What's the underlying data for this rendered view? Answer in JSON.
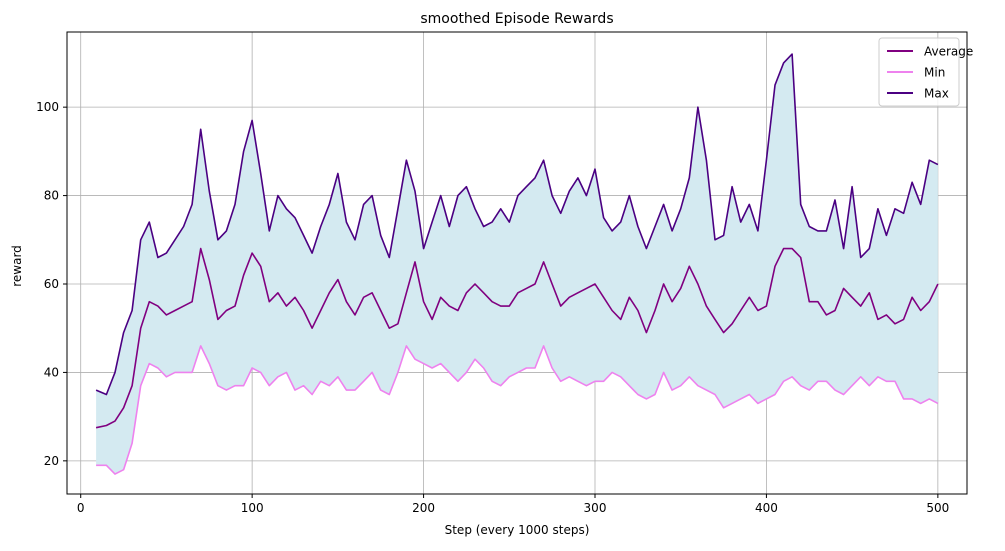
{
  "chart_data": {
    "type": "line",
    "title": "smoothed Episode Rewards",
    "xlabel": "Step (every 1000 steps)",
    "ylabel": "reward",
    "xlim": [
      -8,
      517
    ],
    "ylim": [
      12.5,
      117
    ],
    "x_ticks": [
      0,
      100,
      200,
      300,
      400,
      500
    ],
    "y_ticks": [
      20,
      40,
      60,
      80,
      100
    ],
    "grid": true,
    "legend_position": "top-right",
    "fill_between": {
      "lower": "Min",
      "upper": "Max",
      "color": "#d4eaf1"
    },
    "x": [
      9,
      15,
      20,
      25,
      30,
      35,
      40,
      45,
      50,
      55,
      60,
      65,
      70,
      75,
      80,
      85,
      90,
      95,
      100,
      105,
      110,
      115,
      120,
      125,
      130,
      135,
      140,
      145,
      150,
      155,
      160,
      165,
      170,
      175,
      180,
      185,
      190,
      195,
      200,
      205,
      210,
      215,
      220,
      225,
      230,
      235,
      240,
      245,
      250,
      255,
      260,
      265,
      270,
      275,
      280,
      285,
      290,
      295,
      300,
      305,
      310,
      315,
      320,
      325,
      330,
      335,
      340,
      345,
      350,
      355,
      360,
      365,
      370,
      375,
      380,
      385,
      390,
      395,
      400,
      405,
      410,
      415,
      420,
      425,
      430,
      435,
      440,
      445,
      450,
      455,
      460,
      465,
      470,
      475,
      480,
      485,
      490,
      495,
      500
    ],
    "series": [
      {
        "name": "Average",
        "color": "#800080",
        "values": [
          27.5,
          28,
          29,
          32,
          37,
          50,
          56,
          55,
          53,
          54,
          55,
          56,
          68,
          61,
          52,
          54,
          55,
          62,
          67,
          64,
          56,
          58,
          55,
          57,
          54,
          50,
          54,
          58,
          61,
          56,
          53,
          57,
          58,
          54,
          50,
          51,
          58,
          65,
          56,
          52,
          57,
          55,
          54,
          58,
          60,
          58,
          56,
          55,
          55,
          58,
          59,
          60,
          65,
          60,
          55,
          57,
          58,
          59,
          60,
          57,
          54,
          52,
          57,
          54,
          49,
          54,
          60,
          56,
          59,
          64,
          60,
          55,
          52,
          49,
          51,
          54,
          57,
          54,
          55,
          64,
          68,
          68,
          66,
          56,
          56,
          53,
          54,
          59,
          57,
          55,
          58,
          52,
          53,
          51,
          52,
          57,
          54,
          56,
          60
        ]
      },
      {
        "name": "Min",
        "color": "#ee82ee",
        "values": [
          19,
          19,
          17,
          18,
          24,
          37,
          42,
          41,
          39,
          40,
          40,
          40,
          46,
          42,
          37,
          36,
          37,
          37,
          41,
          40,
          37,
          39,
          40,
          36,
          37,
          35,
          38,
          37,
          39,
          36,
          36,
          38,
          40,
          36,
          35,
          40,
          46,
          43,
          42,
          41,
          42,
          40,
          38,
          40,
          43,
          41,
          38,
          37,
          39,
          40,
          41,
          41,
          46,
          41,
          38,
          39,
          38,
          37,
          38,
          38,
          40,
          39,
          37,
          35,
          34,
          35,
          40,
          36,
          37,
          39,
          37,
          36,
          35,
          32,
          33,
          34,
          35,
          33,
          34,
          35,
          38,
          39,
          37,
          36,
          38,
          38,
          36,
          35,
          37,
          39,
          37,
          39,
          38,
          38,
          34,
          34,
          33,
          34,
          33
        ]
      },
      {
        "name": "Max",
        "color": "#4b0082",
        "values": [
          36,
          35,
          40,
          49,
          54,
          70,
          74,
          66,
          67,
          70,
          73,
          78,
          95,
          81,
          70,
          72,
          78,
          90,
          97,
          85,
          72,
          80,
          77,
          75,
          71,
          67,
          73,
          78,
          85,
          74,
          70,
          78,
          80,
          71,
          66,
          77,
          88,
          81,
          68,
          74,
          80,
          73,
          80,
          82,
          77,
          73,
          74,
          77,
          74,
          80,
          82,
          84,
          88,
          80,
          76,
          81,
          84,
          80,
          86,
          75,
          72,
          74,
          80,
          73,
          68,
          73,
          78,
          72,
          77,
          84,
          100,
          88,
          70,
          71,
          82,
          74,
          78,
          72,
          88,
          105,
          110,
          112,
          78,
          73,
          72,
          72,
          79,
          68,
          82,
          66,
          68,
          77,
          71,
          77,
          76,
          83,
          78,
          88,
          87
        ]
      }
    ]
  }
}
